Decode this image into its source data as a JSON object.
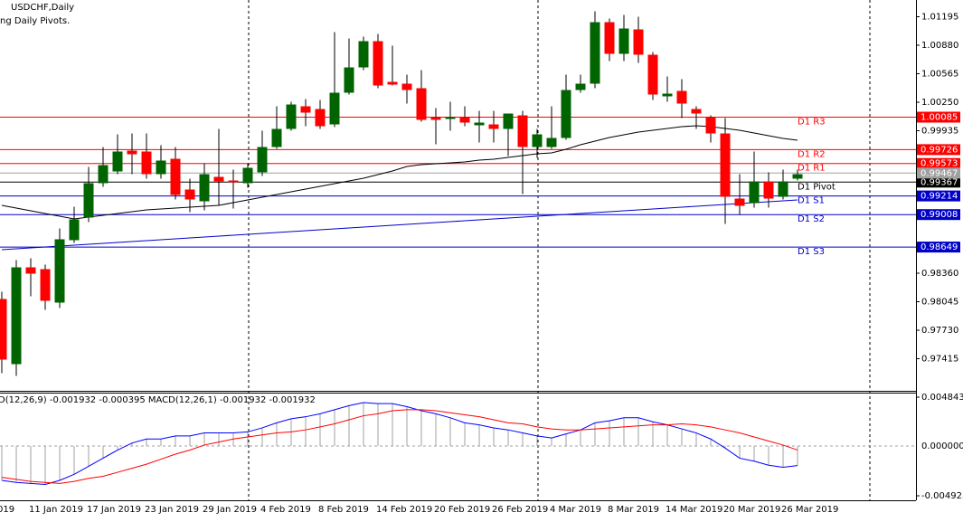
{
  "chart_data": [
    {
      "type": "candlestick",
      "title": "USDCHF,Daily",
      "subtitle": "ng Daily Pivots.",
      "x_label_clipped": "019",
      "categories": [
        null,
        null,
        "11 Jan 2019",
        null,
        null,
        null,
        "17 Jan 2019",
        null,
        null,
        null,
        "23 Jan 2019",
        null,
        null,
        null,
        "29 Jan 2019",
        null,
        null,
        null,
        "4 Feb 2019",
        null,
        null,
        null,
        "8 Feb 2019",
        null,
        null,
        null,
        "14 Feb 2019",
        null,
        null,
        null,
        "20 Feb 2019",
        null,
        null,
        null,
        "26 Feb 2019",
        null,
        null,
        null,
        "4 Mar 2019",
        null,
        null,
        null,
        "8 Mar 2019",
        null,
        null,
        null,
        "14 Mar 2019",
        null,
        null,
        null,
        "20 Mar 2019",
        null,
        null,
        null,
        "26 Mar 2019",
        null
      ],
      "open": [
        0.98075,
        0.97355,
        0.98425,
        0.98405,
        0.98035,
        0.98725,
        0.98975,
        0.99355,
        0.99485,
        0.99715,
        0.99705,
        0.99455,
        0.99625,
        0.99285,
        0.99155,
        0.99425,
        0.99385,
        0.99355,
        0.99475,
        0.99755,
        0.99955,
        1.00205,
        1.00175,
        1.00005,
        1.00355,
        1.00635,
        1.00925,
        1.00475,
        1.00455,
        1.00405,
        1.00085,
        1.00065,
        1.00085,
        0.99995,
        1.00005,
        0.99955,
        1.00105,
        0.99755,
        0.99755,
        0.99855,
        1.00385,
        1.00455,
        1.01135,
        1.00785,
        1.01055,
        1.00775,
        1.00315,
        1.00375,
        1.00175,
        1.00085,
        0.99905,
        0.99185,
        0.99135,
        0.99375,
        0.99205,
        0.99405
      ],
      "high": [
        0.98155,
        0.98505,
        0.98525,
        0.98455,
        0.98855,
        0.99095,
        0.99535,
        0.99755,
        0.99895,
        0.99905,
        0.99905,
        0.99775,
        0.99755,
        0.99405,
        0.99575,
        0.99955,
        0.99505,
        0.99575,
        0.99935,
        1.00205,
        1.00255,
        1.00285,
        1.00275,
        1.01025,
        1.00955,
        1.00975,
        1.01005,
        1.00875,
        1.00555,
        1.00605,
        1.00185,
        1.00255,
        1.00205,
        1.00155,
        1.00155,
        1.00125,
        1.00155,
        0.99955,
        1.00205,
        1.00555,
        1.00555,
        1.01255,
        1.01175,
        1.01215,
        1.01195,
        1.00805,
        1.00535,
        1.00505,
        1.00205,
        1.00105,
        1.00075,
        0.99455,
        0.99705,
        0.99475,
        0.99505,
        0.99505
      ],
      "low": [
        0.97255,
        0.97225,
        0.98105,
        0.97955,
        0.97975,
        0.98695,
        0.98925,
        0.99315,
        0.99455,
        0.99455,
        0.99405,
        0.99405,
        0.99175,
        0.99035,
        0.99055,
        0.99105,
        0.99075,
        0.99305,
        0.99435,
        0.99735,
        0.99935,
        0.99985,
        0.99955,
        0.99975,
        1.00335,
        1.00605,
        1.00405,
        1.00435,
        1.00235,
        1.00035,
        0.99785,
        0.99935,
        0.99985,
        0.99805,
        0.99805,
        0.99655,
        0.99235,
        0.99635,
        0.99735,
        0.99835,
        1.00355,
        1.00405,
        1.00705,
        1.00705,
        1.00685,
        1.00275,
        1.00255,
        1.00075,
        0.99955,
        0.99805,
        0.98905,
        0.99005,
        0.99085,
        0.99085,
        0.99175,
        0.99385
      ],
      "close": [
        0.97405,
        0.98425,
        0.98355,
        0.98055,
        0.98735,
        0.98955,
        0.99355,
        0.99555,
        0.99705,
        0.99675,
        0.99455,
        0.99605,
        0.99225,
        0.99175,
        0.99455,
        0.99375,
        0.99365,
        0.99525,
        0.99755,
        0.99955,
        1.00225,
        1.00135,
        0.99985,
        1.00355,
        1.00635,
        1.00925,
        1.00435,
        1.00445,
        1.00385,
        1.00055,
        1.00055,
        1.00085,
        1.00025,
        1.00025,
        0.99955,
        1.00125,
        0.99755,
        0.99895,
        0.99855,
        1.00385,
        1.00455,
        1.01135,
        1.00785,
        1.01065,
        1.00775,
        1.00335,
        1.00345,
        1.00235,
        1.00125,
        0.99905,
        0.99205,
        0.99105,
        0.99375,
        0.99185,
        0.99375,
        0.99455
      ],
      "up_color": "#006400",
      "down_color": "#ff0000",
      "wick_color": "#000000",
      "moving_averages": [
        {
          "color": "#000000",
          "values": [
            0.9911,
            0.9908,
            0.9905,
            0.9902,
            0.9899,
            0.9896,
            0.9898,
            0.99,
            0.9902,
            0.9904,
            0.9906,
            0.9907,
            0.9908,
            0.9909,
            0.991,
            0.9911,
            0.9914,
            0.9917,
            0.992,
            0.9923,
            0.9926,
            0.9929,
            0.9932,
            0.9935,
            0.9938,
            0.9941,
            0.9945,
            0.9949,
            0.9954,
            0.9956,
            0.9957,
            0.9958,
            0.9959,
            0.9961,
            0.9962,
            0.9964,
            0.9966,
            0.9968,
            0.9969,
            0.9973,
            0.9978,
            0.9982,
            0.9986,
            0.9989,
            0.9992,
            0.9994,
            0.9996,
            0.9998,
            0.9999,
            0.9998,
            0.9996,
            0.9994,
            0.9991,
            0.9988,
            0.9985,
            0.9983
          ]
        },
        {
          "color": "#0000c8",
          "values": [
            0.9862,
            0.9863,
            0.9864,
            0.9865,
            0.9866,
            0.9867,
            0.9868,
            0.9869,
            0.987,
            0.9871,
            0.9872,
            0.9873,
            0.9874,
            0.9875,
            0.9876,
            0.9877,
            0.9878,
            0.9879,
            0.988,
            0.9881,
            0.9882,
            0.9883,
            0.9884,
            0.9885,
            0.9886,
            0.9887,
            0.9888,
            0.9889,
            0.989,
            0.9891,
            0.9892,
            0.9893,
            0.9894,
            0.9895,
            0.9896,
            0.9897,
            0.9898,
            0.9899,
            0.99,
            0.9901,
            0.9902,
            0.9903,
            0.9904,
            0.9905,
            0.9906,
            0.9907,
            0.9908,
            0.9909,
            0.991,
            0.9911,
            0.9912,
            0.9913,
            0.9914,
            0.9915,
            0.9916,
            0.9917
          ]
        }
      ],
      "levels": [
        {
          "label": "D1 R3",
          "value": 1.00085,
          "color": "#ff0000"
        },
        {
          "label": "D1 R2",
          "value": 0.99726,
          "color": "#ff0000"
        },
        {
          "label": "D1 R1",
          "value": 0.99573,
          "color": "#ff0000"
        },
        {
          "label": "D1 Pivot",
          "value": 0.99367,
          "color": "#000000"
        },
        {
          "label": "D1 S1",
          "value": 0.99214,
          "color": "#0000c8"
        },
        {
          "label": "D1 S2",
          "value": 0.99008,
          "color": "#0000c8"
        },
        {
          "label": "D1 S3",
          "value": 0.98649,
          "color": "#0000c8"
        }
      ],
      "bid": {
        "value": 0.99467,
        "color": "#a0a0a0"
      },
      "ylim": [
        0.9706,
        1.0138
      ],
      "yticks": [
        1.01195,
        {
          "value": 1.0088,
          "label": "1.00880"
        },
        1.00565,
        {
          "value": 1.0025,
          "label": "1.00250"
        },
        0.99935,
        {
          "value": 0.9836,
          "label": "0.98360"
        },
        0.98045,
        {
          "value": 0.9773,
          "label": "0.97730"
        },
        0.97415
      ]
    },
    {
      "type": "macd",
      "title": "D(12,26,9) -0.001932 -0.000395 MACD(12,26,1) -0.001932 -0.001932",
      "histogram_color": "#a0a0a0",
      "series": [
        {
          "color": "#0000ff",
          "values": [
            -0.0034,
            -0.0036,
            -0.0037,
            -0.0038,
            -0.0034,
            -0.0028,
            -0.002,
            -0.0012,
            -0.0004,
            0.0003,
            0.0007,
            0.0007,
            0.001,
            0.001,
            0.0013,
            0.0013,
            0.0013,
            0.0014,
            0.0018,
            0.0023,
            0.0027,
            0.0029,
            0.0032,
            0.0036,
            0.004,
            0.0043,
            0.0042,
            0.0042,
            0.0039,
            0.0035,
            0.0032,
            0.0028,
            0.0023,
            0.0021,
            0.0018,
            0.0016,
            0.0013,
            0.001,
            0.0008,
            0.0012,
            0.0016,
            0.0023,
            0.0025,
            0.0028,
            0.0028,
            0.0024,
            0.0021,
            0.0017,
            0.0013,
            0.0007,
            -0.0002,
            -0.0012,
            -0.0015,
            -0.0019,
            -0.0021,
            -0.001932
          ]
        },
        {
          "color": "#ff0000",
          "values": [
            -0.0031,
            -0.0033,
            -0.0035,
            -0.0036,
            -0.0037,
            -0.0035,
            -0.0032,
            -0.003,
            -0.0026,
            -0.0022,
            -0.0018,
            -0.0013,
            -0.0008,
            -0.0004,
            0.0001,
            0.0004,
            0.0007,
            0.0009,
            0.0011,
            0.0013,
            0.0014,
            0.0016,
            0.0019,
            0.0022,
            0.0026,
            0.003,
            0.0032,
            0.0035,
            0.0036,
            0.0036,
            0.0035,
            0.0033,
            0.0031,
            0.0029,
            0.0026,
            0.0023,
            0.0022,
            0.0019,
            0.0017,
            0.0016,
            0.0016,
            0.0017,
            0.0018,
            0.0019,
            0.002,
            0.0021,
            0.0021,
            0.0022,
            0.0021,
            0.0019,
            0.0016,
            0.0013,
            0.0009,
            0.0005,
            0.0001,
            -0.000395
          ]
        }
      ],
      "ylim": [
        -0.00537,
        0.00529
      ],
      "yticks": [
        0.004843,
        {
          "value": 0,
          "label": "0.000000"
        },
        -0.004925
      ]
    }
  ]
}
